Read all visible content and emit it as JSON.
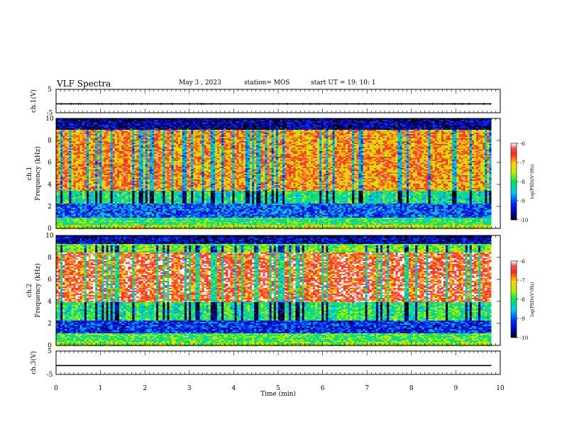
{
  "header": {
    "title": "VLF Spectra",
    "date": "May 3  , 2023",
    "station": "station= MOS",
    "start": "start  UT =   19: 10: 1"
  },
  "chart_data": [
    {
      "type": "line",
      "ylabel": "ch.1(V)",
      "ylim": [
        -5,
        5
      ],
      "yticks": [
        5,
        -5
      ],
      "xlim": [
        0,
        10
      ],
      "x": [
        0,
        9.8
      ],
      "values": [
        -1.2,
        -1.2
      ]
    },
    {
      "type": "heatmap",
      "ylabel_line1": "ch.1",
      "ylabel_line2": "Frequency (kHz)",
      "ylim": [
        0,
        10
      ],
      "yticks": [
        0,
        2,
        4,
        6,
        8,
        10
      ],
      "xlim": [
        0,
        10
      ],
      "data_xmax": 9.8,
      "colorbar": {
        "label": "log(PSD)(V²/Hz)",
        "ticks": [
          -6,
          -7,
          -8,
          -9,
          -10
        ],
        "range": [
          -10,
          -6
        ]
      },
      "bands": [
        {
          "from": 0,
          "to": 0.4,
          "level": -7.4
        },
        {
          "from": 0.4,
          "to": 1.0,
          "level": -8.0
        },
        {
          "from": 1.0,
          "to": 2.3,
          "level": -9.0
        },
        {
          "from": 2.3,
          "to": 3.5,
          "level": -8.3
        },
        {
          "from": 3.5,
          "to": 9.0,
          "level": -7.0
        },
        {
          "from": 9.0,
          "to": 10.0,
          "level": -9.6
        }
      ]
    },
    {
      "type": "heatmap",
      "ylabel_line1": "ch.2",
      "ylabel_line2": "Frequency (kHz)",
      "ylim": [
        0,
        10
      ],
      "yticks": [
        0,
        2,
        4,
        6,
        8,
        10
      ],
      "xlim": [
        0,
        10
      ],
      "data_xmax": 9.8,
      "colorbar": {
        "label": "log(PSD)(V²/Hz)",
        "ticks": [
          -6,
          -7,
          -8,
          -9,
          -10
        ],
        "range": [
          -10,
          -6
        ]
      },
      "bands": [
        {
          "from": 0,
          "to": 0.4,
          "level": -7.6
        },
        {
          "from": 0.4,
          "to": 1.1,
          "level": -7.9
        },
        {
          "from": 1.1,
          "to": 2.3,
          "level": -9.2
        },
        {
          "from": 2.3,
          "to": 4.0,
          "level": -8.2
        },
        {
          "from": 4.0,
          "to": 8.5,
          "level": -6.6
        },
        {
          "from": 8.5,
          "to": 9.3,
          "level": -7.8
        },
        {
          "from": 9.3,
          "to": 10.0,
          "level": -9.5
        }
      ]
    },
    {
      "type": "line",
      "ylabel": "ch.3(V)",
      "ylim": [
        -5,
        5
      ],
      "yticks": [
        5,
        -5
      ],
      "xlim": [
        0,
        10
      ],
      "x": [
        0,
        9.8
      ],
      "values": [
        -1.2,
        -1.2
      ],
      "xlabel": "Time (min)",
      "xticks": [
        0,
        1,
        2,
        3,
        4,
        5,
        6,
        7,
        8,
        9,
        10
      ]
    }
  ]
}
